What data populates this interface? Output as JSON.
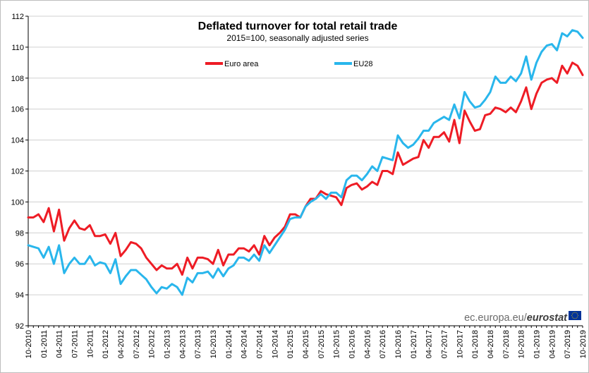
{
  "chart_data": {
    "type": "line",
    "title": "Deflated turnover for total retail trade",
    "subtitle": "2015=100, seasonally adjusted series",
    "xlabel": "",
    "ylabel": "",
    "ylim": [
      92,
      112
    ],
    "yticks": [
      92,
      94,
      96,
      98,
      100,
      102,
      104,
      106,
      108,
      110,
      112
    ],
    "grid": "horizontal",
    "legend_position": "top",
    "x_start": "10-2010",
    "x_tick_labels": [
      "10-2010",
      "01-2011",
      "04-2011",
      "07-2011",
      "10-2011",
      "01-2012",
      "04-2012",
      "07-2012",
      "10-2012",
      "01-2013",
      "04-2013",
      "07-2013",
      "10-2013",
      "01-2014",
      "04-2014",
      "07-2014",
      "10-2014",
      "01-2015",
      "04-2015",
      "07-2015",
      "10-2015",
      "01-2016",
      "04-2016",
      "07-2016",
      "10-2016",
      "01-2017",
      "04-2017",
      "07-2017",
      "10-2017",
      "01-2018",
      "04-2018",
      "07-2018",
      "10-2018",
      "01-2019",
      "04-2019",
      "07-2019",
      "10-2019"
    ],
    "series": [
      {
        "name": "Euro area",
        "color": "#ee1c25",
        "values": [
          99.0,
          99.0,
          99.2,
          98.7,
          99.6,
          98.1,
          99.5,
          97.5,
          98.3,
          98.8,
          98.3,
          98.2,
          98.5,
          97.8,
          97.8,
          97.9,
          97.3,
          98.0,
          96.5,
          96.9,
          97.4,
          97.3,
          97.0,
          96.4,
          96.0,
          95.6,
          95.9,
          95.7,
          95.7,
          96.0,
          95.3,
          96.4,
          95.7,
          96.4,
          96.4,
          96.3,
          96.0,
          96.9,
          95.9,
          96.6,
          96.6,
          97.0,
          97.0,
          96.8,
          97.2,
          96.6,
          97.8,
          97.2,
          97.7,
          98.0,
          98.4,
          99.2,
          99.2,
          99.0,
          99.7,
          100.2,
          100.2,
          100.7,
          100.5,
          100.4,
          100.3,
          99.8,
          100.9,
          101.1,
          101.2,
          100.8,
          101.0,
          101.3,
          101.1,
          102.0,
          102.0,
          101.8,
          103.2,
          102.4,
          102.6,
          102.8,
          102.9,
          104.0,
          103.5,
          104.2,
          104.2,
          104.5,
          103.9,
          105.3,
          103.8,
          105.9,
          105.2,
          104.6,
          104.7,
          105.6,
          105.7,
          106.1,
          106.0,
          105.8,
          106.1,
          105.8,
          106.5,
          107.4,
          106.0,
          107.0,
          107.7,
          107.9,
          108.0,
          107.7,
          108.8,
          108.3,
          109.0,
          108.8,
          108.2
        ]
      },
      {
        "name": "EU28",
        "color": "#29b6ec",
        "values": [
          97.2,
          97.1,
          97.0,
          96.4,
          97.1,
          96.0,
          97.2,
          95.4,
          96.0,
          96.4,
          96.0,
          96.0,
          96.5,
          95.9,
          96.1,
          96.0,
          95.4,
          96.3,
          94.7,
          95.2,
          95.6,
          95.6,
          95.3,
          95.0,
          94.5,
          94.1,
          94.5,
          94.4,
          94.7,
          94.5,
          94.0,
          95.1,
          94.8,
          95.4,
          95.4,
          95.5,
          95.1,
          95.7,
          95.2,
          95.7,
          95.9,
          96.4,
          96.4,
          96.2,
          96.6,
          96.2,
          97.2,
          96.7,
          97.2,
          97.7,
          98.2,
          98.9,
          99.0,
          99.0,
          99.7,
          100.0,
          100.2,
          100.5,
          100.2,
          100.6,
          100.6,
          100.3,
          101.4,
          101.7,
          101.7,
          101.4,
          101.8,
          102.3,
          102.0,
          102.9,
          102.8,
          102.7,
          104.3,
          103.8,
          103.5,
          103.7,
          104.1,
          104.6,
          104.6,
          105.1,
          105.3,
          105.5,
          105.3,
          106.3,
          105.4,
          107.1,
          106.5,
          106.1,
          106.2,
          106.6,
          107.1,
          108.1,
          107.7,
          107.7,
          108.1,
          107.8,
          108.3,
          109.4,
          107.9,
          109.0,
          109.7,
          110.1,
          110.2,
          109.8,
          110.9,
          110.7,
          111.1,
          111.0,
          110.6
        ]
      }
    ]
  },
  "branding": {
    "text_light": "ec.europa.eu/",
    "text_bold": "eurostat",
    "flag_color": "#003399",
    "star_color": "#ffcc00"
  }
}
